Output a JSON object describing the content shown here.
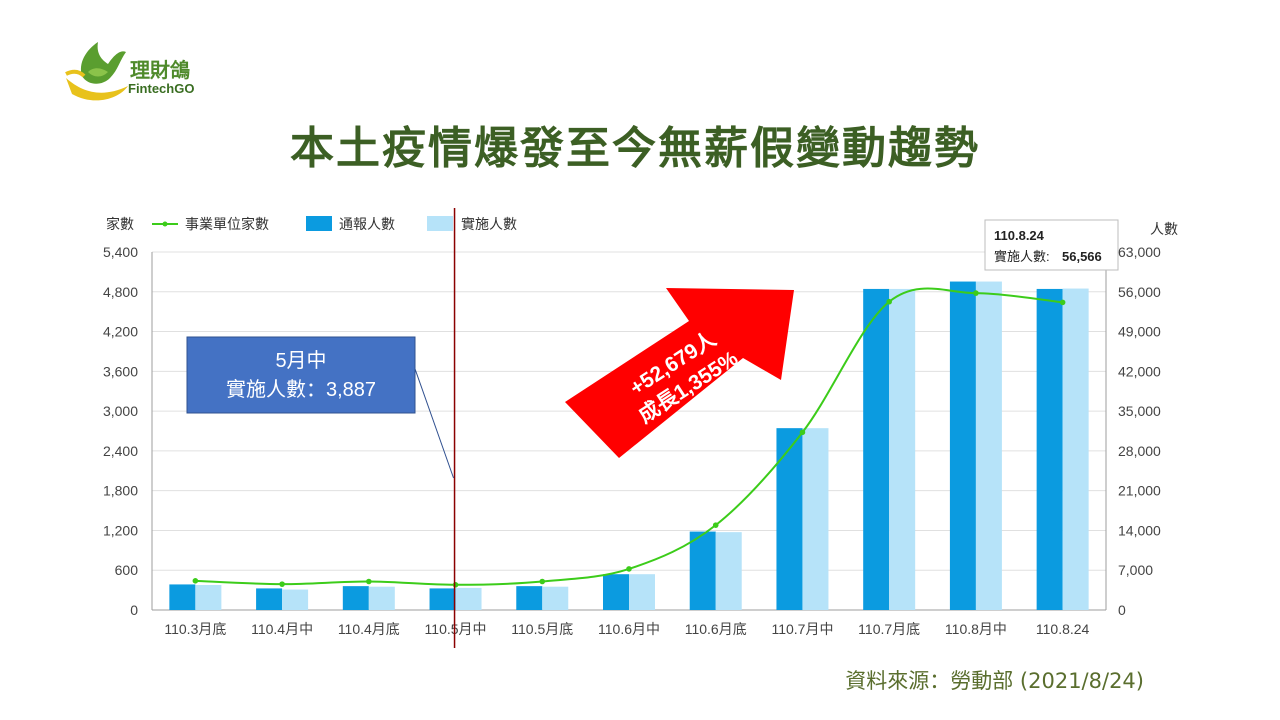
{
  "brand": {
    "name": "理財鴿",
    "sub": "FintechGO",
    "colors": {
      "green": "#4f8a2b",
      "yellow": "#e8c21c"
    }
  },
  "title": "本土疫情爆發至今無薪假變動趨勢",
  "source": "資料來源：勞動部 (2021/8/24)",
  "chart_data": {
    "type": "bar",
    "categories": [
      "110.3月底",
      "110.4月中",
      "110.4月底",
      "110.5月中",
      "110.5月底",
      "110.6月中",
      "110.6月底",
      "110.7月中",
      "110.7月底",
      "110.8月中",
      "110.8.24"
    ],
    "series": [
      {
        "name": "事業單位家數",
        "type": "line",
        "axis": "left",
        "color": "#3ccc1a",
        "values": [
          440,
          390,
          430,
          380,
          430,
          620,
          1280,
          2680,
          4650,
          4780,
          4640
        ]
      },
      {
        "name": "通報人數",
        "type": "bar",
        "axis": "right",
        "color": "#0b9be0",
        "values": [
          4500,
          3800,
          4200,
          3800,
          4200,
          6300,
          13800,
          32000,
          56500,
          57800,
          56500
        ]
      },
      {
        "name": "實施人數",
        "type": "bar",
        "axis": "right",
        "color": "#b6e3f9",
        "values": [
          4400,
          3600,
          4100,
          3887,
          4100,
          6300,
          13700,
          32000,
          56500,
          57800,
          56566
        ]
      }
    ],
    "y_left": {
      "label": "家數",
      "ticks": [
        "5,400",
        "4,800",
        "4,200",
        "3,600",
        "3,000",
        "2,400",
        "1,800",
        "1,200",
        "600",
        "0"
      ],
      "range": [
        0,
        5400
      ]
    },
    "y_right": {
      "label": "人數",
      "ticks": [
        "63,000",
        "56,000",
        "49,000",
        "42,000",
        "35,000",
        "28,000",
        "21,000",
        "14,000",
        "7,000",
        "0"
      ],
      "range": [
        0,
        63000
      ]
    },
    "grid": true,
    "legend": "top-left",
    "marker_category": "110.5月中",
    "annotations": {
      "callout_left": {
        "line1": "5月中",
        "line2": "實施人數：3,887",
        "color": "#4472c4"
      },
      "arrow": {
        "line1": "+52,679人",
        "line2": "成長1,355%",
        "color": "#ff0000"
      },
      "tooltip": {
        "title": "110.8.24",
        "label": "實施人數: ",
        "value": "56,566"
      }
    }
  }
}
